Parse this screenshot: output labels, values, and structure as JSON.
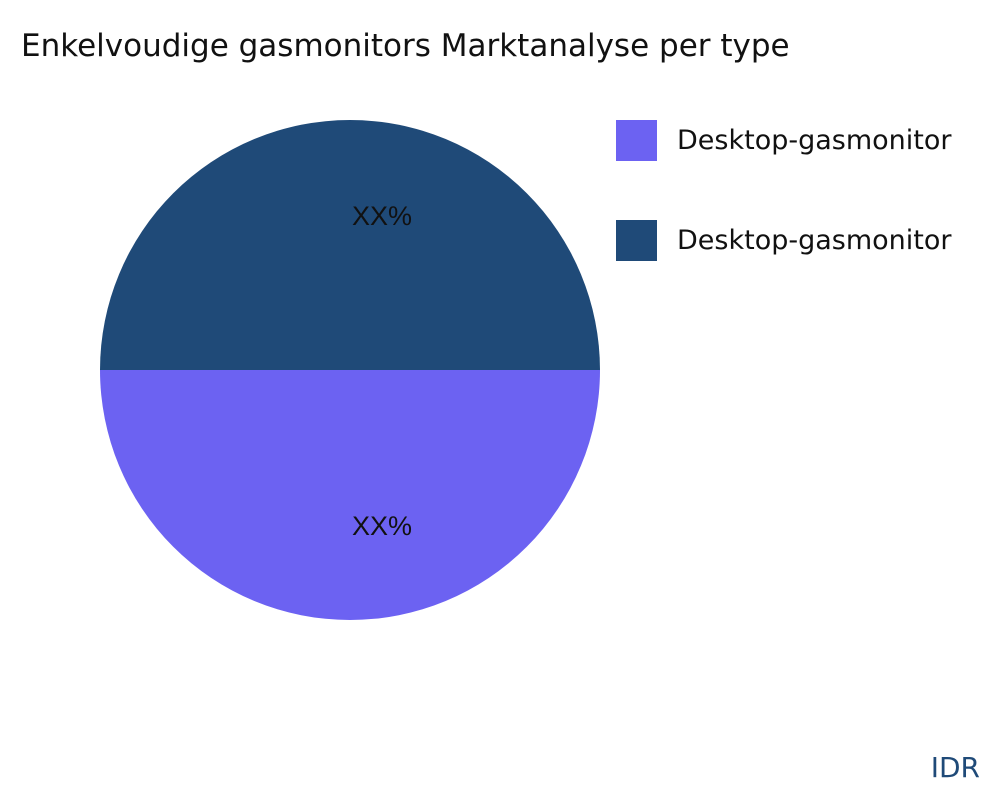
{
  "chart_data": {
    "type": "pie",
    "title": "Enkelvoudige gasmonitors Marktanalyse per type",
    "slices": [
      {
        "label": "Desktop-gasmonitor",
        "value": 50,
        "data_label": "XX%",
        "color": "#6c62f2"
      },
      {
        "label": "Desktop-gasmonitor",
        "value": 50,
        "data_label": "XX%",
        "color": "#1f4a78"
      }
    ],
    "legend_position": "right"
  },
  "brand": "IDR"
}
